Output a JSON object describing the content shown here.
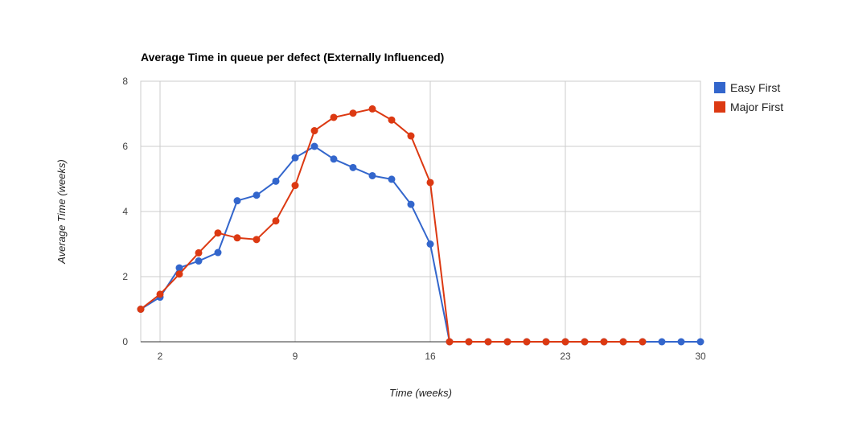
{
  "chart_data": {
    "type": "line",
    "title": "Average Time in queue per defect (Externally Influenced)",
    "xlabel": "Time (weeks)",
    "ylabel": "Average Time (weeks)",
    "xlim": [
      1,
      30
    ],
    "ylim": [
      0,
      8
    ],
    "xticks": [
      2,
      9,
      16,
      23,
      30
    ],
    "yticks": [
      0,
      2,
      4,
      6,
      8
    ],
    "grid": true,
    "legend_position": "right",
    "series": [
      {
        "name": "Easy First",
        "color": "#3366cc",
        "x": [
          1,
          2,
          3,
          4,
          5,
          6,
          7,
          8,
          9,
          10,
          11,
          12,
          13,
          14,
          15,
          16,
          17,
          18,
          19,
          20,
          21,
          22,
          23,
          24,
          25,
          26,
          27,
          28,
          29,
          30
        ],
        "values": [
          1.0,
          1.37,
          2.27,
          2.48,
          2.74,
          4.33,
          4.5,
          4.93,
          5.65,
          6.0,
          5.61,
          5.35,
          5.1,
          4.99,
          4.22,
          3.0,
          0,
          0,
          0,
          0,
          0,
          0,
          0,
          0,
          0,
          0,
          0,
          0,
          0,
          0
        ]
      },
      {
        "name": "Major First",
        "color": "#dc3912",
        "x": [
          1,
          2,
          3,
          4,
          5,
          6,
          7,
          8,
          9,
          10,
          11,
          12,
          13,
          14,
          15,
          16,
          17,
          18,
          19,
          20,
          21,
          22,
          23,
          24,
          25,
          26,
          27
        ],
        "values": [
          1.0,
          1.46,
          2.08,
          2.73,
          3.34,
          3.19,
          3.14,
          3.71,
          4.8,
          6.48,
          6.89,
          7.02,
          7.15,
          6.81,
          6.32,
          4.89,
          0,
          0,
          0,
          0,
          0,
          0,
          0,
          0,
          0,
          0,
          0
        ]
      }
    ]
  }
}
